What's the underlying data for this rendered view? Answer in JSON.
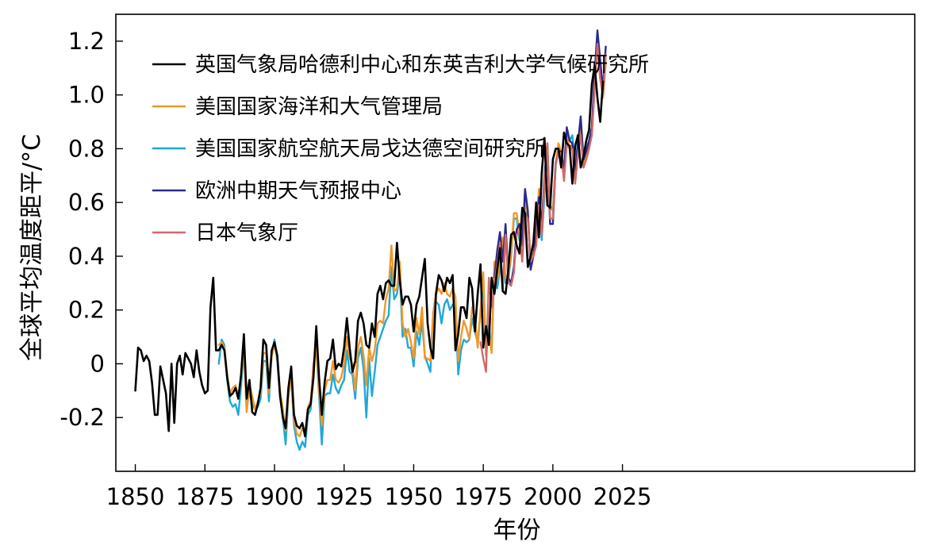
{
  "chart_data": {
    "type": "line",
    "title": "",
    "xlabel": "年份",
    "ylabel": "全球平均温度距平/°C",
    "xlim": [
      1843,
      2130
    ],
    "ylim": [
      -0.4,
      1.3
    ],
    "xticks": [
      1850,
      1875,
      1900,
      1925,
      1950,
      1975,
      2000,
      2025
    ],
    "yticks": [
      -0.2,
      0,
      0.2,
      0.4,
      0.6,
      0.8,
      1.0,
      1.2
    ],
    "ytick_labels": [
      "-0.2",
      "0",
      "0.2",
      "0.4",
      "0.6",
      "0.8",
      "1.0",
      "1.2"
    ],
    "grid": false,
    "legend_position": "top-left",
    "series": [
      {
        "name": "英国气象局哈德利中心和东英吉利大学气候研究所",
        "color": "#000000",
        "x_start": 1850,
        "values": [
          -0.1,
          0.06,
          0.05,
          0.01,
          0.03,
          0.01,
          -0.07,
          -0.19,
          -0.19,
          -0.01,
          -0.06,
          -0.11,
          -0.25,
          0.0,
          -0.22,
          0.0,
          0.03,
          -0.04,
          0.04,
          0.02,
          0.0,
          -0.05,
          0.05,
          -0.03,
          -0.08,
          -0.11,
          -0.1,
          0.21,
          0.32,
          0.05,
          0.05,
          0.07,
          0.05,
          -0.05,
          -0.12,
          -0.11,
          -0.09,
          -0.13,
          -0.04,
          0.11,
          -0.13,
          -0.06,
          -0.18,
          -0.19,
          -0.15,
          -0.09,
          0.09,
          0.07,
          -0.09,
          0.05,
          0.08,
          0.03,
          -0.12,
          -0.2,
          -0.24,
          -0.09,
          -0.01,
          -0.19,
          -0.23,
          -0.24,
          -0.22,
          -0.27,
          -0.17,
          -0.15,
          -0.05,
          0.14,
          -0.05,
          -0.19,
          -0.07,
          0.01,
          0.02,
          0.09,
          -0.02,
          0.0,
          -0.01,
          0.06,
          0.17,
          0.06,
          -0.03,
          0.01,
          0.16,
          0.19,
          0.15,
          0.07,
          0.06,
          0.15,
          0.1,
          0.26,
          0.29,
          0.24,
          0.3,
          0.31,
          0.29,
          0.29,
          0.45,
          0.31,
          0.22,
          0.25,
          0.25,
          0.22,
          0.12,
          0.22,
          0.25,
          0.32,
          0.39,
          0.15,
          0.06,
          0.02,
          0.26,
          0.33,
          0.31,
          0.27,
          0.32,
          0.3,
          0.33,
          0.05,
          0.11,
          0.21,
          0.21,
          0.17,
          0.32,
          0.28,
          0.12,
          0.26,
          0.37,
          0.06,
          0.14,
          0.07,
          0.32,
          0.26,
          0.35,
          0.43,
          0.27,
          0.26,
          0.35,
          0.48,
          0.49,
          0.44,
          0.41,
          0.58,
          0.56,
          0.36,
          0.4,
          0.45,
          0.6,
          0.47,
          0.71,
          0.84,
          0.59,
          0.58,
          0.76,
          0.8,
          0.8,
          0.73,
          0.86,
          0.82,
          0.81,
          0.67,
          0.81,
          0.85,
          0.73,
          0.77,
          0.83,
          0.87,
          1.04,
          1.11,
          0.99,
          0.9,
          1.05
        ]
      },
      {
        "name": "美国国家海洋和大气管理局",
        "color": "#f09828",
        "x_start": 1880,
        "values": [
          0.07,
          0.08,
          0.06,
          -0.04,
          -0.11,
          -0.09,
          -0.08,
          -0.12,
          -0.05,
          0.06,
          -0.18,
          -0.08,
          -0.12,
          -0.17,
          -0.14,
          -0.11,
          0.04,
          0.04,
          -0.11,
          0.03,
          0.07,
          0.02,
          -0.1,
          -0.17,
          -0.25,
          -0.12,
          -0.05,
          -0.21,
          -0.26,
          -0.27,
          -0.24,
          -0.26,
          -0.16,
          -0.14,
          0.0,
          0.06,
          -0.1,
          -0.23,
          -0.1,
          -0.06,
          -0.06,
          0.01,
          -0.06,
          -0.07,
          -0.05,
          0.0,
          0.1,
          0.02,
          0.0,
          -0.1,
          0.06,
          0.1,
          0.03,
          -0.08,
          0.06,
          0.01,
          0.05,
          0.15,
          0.16,
          0.15,
          0.24,
          0.28,
          0.44,
          0.27,
          0.28,
          0.38,
          0.15,
          0.1,
          0.13,
          0.08,
          0.02,
          0.17,
          0.11,
          0.21,
          0.02,
          0.02,
          0.01,
          0.19,
          0.26,
          0.28,
          0.26,
          0.3,
          0.26,
          0.25,
          0.28,
          0.25,
          0.01,
          0.1,
          0.16,
          0.13,
          0.09,
          0.21,
          0.17,
          0.06,
          0.2,
          0.34,
          0.04,
          0.12,
          0.04,
          0.38,
          0.31,
          0.39,
          0.47,
          0.32,
          0.32,
          0.41,
          0.56,
          0.56,
          0.48,
          0.47,
          0.6,
          0.56,
          0.39,
          0.41,
          0.51,
          0.65,
          0.49,
          0.67,
          0.82,
          0.59,
          0.57,
          0.74,
          0.82,
          0.79,
          0.72,
          0.85,
          0.8,
          0.82,
          0.7,
          0.8,
          0.87,
          0.74,
          0.78,
          0.82,
          0.88,
          1.05,
          1.18,
          1.06,
          0.99,
          1.12
        ]
      },
      {
        "name": "美国国家航空航天局戈达德空间研究所",
        "color": "#1fa8d8",
        "x_start": 1880,
        "values": [
          0.0,
          0.09,
          0.07,
          -0.06,
          -0.14,
          -0.16,
          -0.15,
          -0.19,
          -0.08,
          0.05,
          -0.17,
          -0.1,
          -0.15,
          -0.17,
          -0.16,
          -0.13,
          0.01,
          0.01,
          -0.14,
          0.04,
          0.09,
          0.01,
          -0.12,
          -0.2,
          -0.3,
          -0.12,
          -0.05,
          -0.23,
          -0.29,
          -0.32,
          -0.29,
          -0.31,
          -0.19,
          -0.17,
          0.0,
          0.06,
          -0.12,
          -0.3,
          -0.12,
          -0.11,
          -0.11,
          -0.04,
          -0.09,
          -0.11,
          -0.08,
          -0.06,
          0.05,
          -0.03,
          -0.04,
          -0.13,
          0.02,
          0.06,
          -0.02,
          -0.2,
          0.02,
          -0.12,
          -0.03,
          0.07,
          0.1,
          0.13,
          0.16,
          0.18,
          0.36,
          0.24,
          0.26,
          0.34,
          0.1,
          0.13,
          0.06,
          0.06,
          -0.01,
          0.12,
          0.07,
          0.16,
          0.03,
          0.0,
          -0.03,
          0.19,
          0.23,
          0.22,
          0.15,
          0.22,
          0.24,
          0.2,
          0.22,
          0.21,
          -0.04,
          0.05,
          0.09,
          0.08,
          0.09,
          0.17,
          0.12,
          0.08,
          0.19,
          0.31,
          0.03,
          0.14,
          0.05,
          0.35,
          0.28,
          0.35,
          0.45,
          0.3,
          0.31,
          0.4,
          0.54,
          0.54,
          0.46,
          0.44,
          0.61,
          0.54,
          0.38,
          0.4,
          0.48,
          0.62,
          0.46,
          0.63,
          0.79,
          0.58,
          0.57,
          0.75,
          0.8,
          0.78,
          0.73,
          0.86,
          0.83,
          0.85,
          0.72,
          0.83,
          0.89,
          0.74,
          0.8,
          0.83,
          0.87,
          1.02,
          1.19,
          1.09,
          1.01,
          1.15
        ]
      },
      {
        "name": "欧洲中期天气预报中心",
        "color": "#2a2a8a",
        "x_start": 1979,
        "values": [
          0.32,
          0.42,
          0.49,
          0.38,
          0.52,
          0.32,
          0.3,
          0.36,
          0.5,
          0.52,
          0.44,
          0.65,
          0.57,
          0.35,
          0.4,
          0.48,
          0.62,
          0.52,
          0.7,
          0.82,
          0.52,
          0.52,
          0.74,
          0.79,
          0.79,
          0.71,
          0.88,
          0.83,
          0.82,
          0.71,
          0.82,
          0.92,
          0.76,
          0.79,
          0.83,
          0.88,
          1.08,
          1.24,
          1.13,
          1.02,
          1.18
        ]
      },
      {
        "name": "日本气象厅",
        "color": "#d06a6a",
        "x_start": 1974,
        "values": [
          0.08,
          0.02,
          -0.03,
          0.32,
          0.21,
          0.3,
          0.37,
          0.45,
          0.28,
          0.48,
          0.3,
          0.29,
          0.34,
          0.48,
          0.49,
          0.38,
          0.56,
          0.54,
          0.38,
          0.4,
          0.44,
          0.59,
          0.48,
          0.68,
          0.82,
          0.54,
          0.54,
          0.74,
          0.79,
          0.78,
          0.68,
          0.82,
          0.8,
          0.8,
          0.67,
          0.78,
          0.85,
          0.73,
          0.76,
          0.8,
          0.85,
          1.02,
          1.19,
          1.06,
          1.0,
          1.15
        ]
      }
    ]
  }
}
